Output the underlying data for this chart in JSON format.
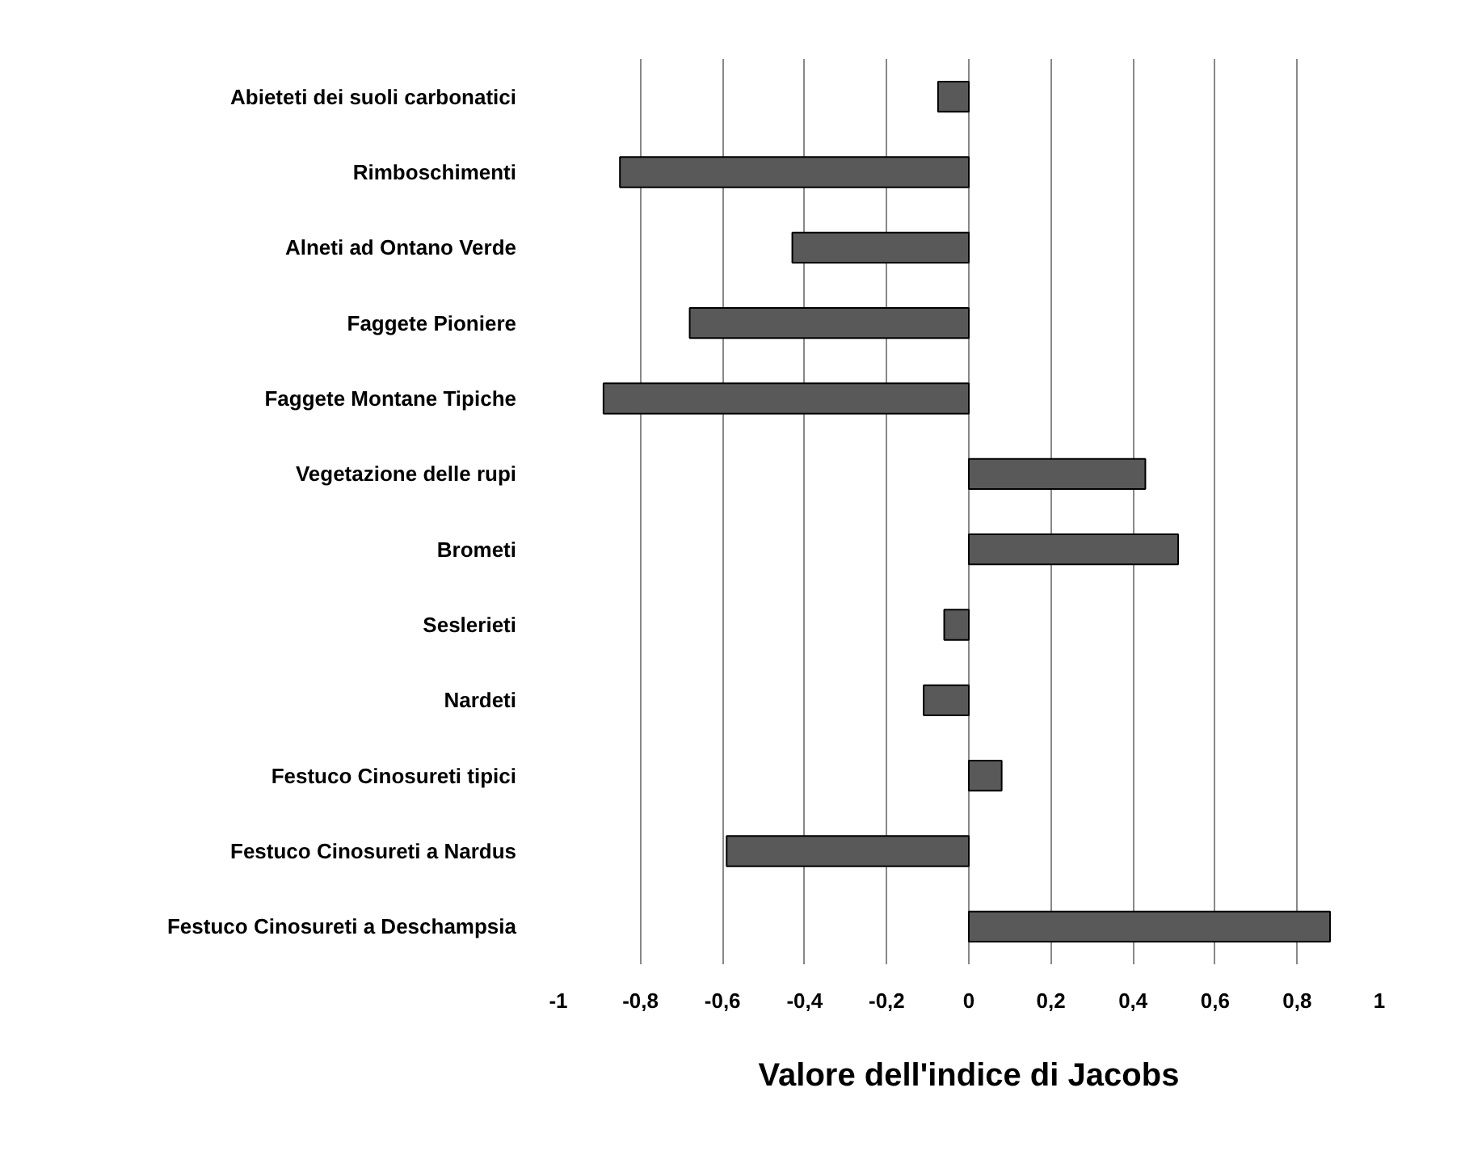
{
  "chart_data": {
    "type": "bar",
    "orientation": "horizontal",
    "xlabel": "Valore dell'indice di Jacobs",
    "categories": [
      "Abieteti dei suoli carbonatici",
      "Rimboschimenti",
      "Alneti ad Ontano Verde",
      "Faggete Pioniere",
      "Faggete Montane Tipiche",
      "Vegetazione delle rupi",
      "Brometi",
      "Seslerieti",
      "Nardeti",
      "Festuco Cinosureti tipici",
      "Festuco Cinosureti a Nardus",
      "Festuco Cinosureti a Deschampsia"
    ],
    "values": [
      -0.075,
      -0.85,
      -0.43,
      -0.68,
      -0.89,
      0.43,
      0.51,
      -0.06,
      -0.11,
      0.08,
      -0.59,
      0.88
    ],
    "color": "#595959",
    "xlim": [
      -1,
      1
    ],
    "xticks": [
      {
        "value": -1,
        "label": "-1"
      },
      {
        "value": -0.8,
        "label": "-0,8"
      },
      {
        "value": -0.6,
        "label": "-0,6"
      },
      {
        "value": -0.4,
        "label": "-0,4"
      },
      {
        "value": -0.2,
        "label": "-0,2"
      },
      {
        "value": 0,
        "label": "0"
      },
      {
        "value": 0.2,
        "label": "0,2"
      },
      {
        "value": 0.4,
        "label": "0,4"
      },
      {
        "value": 0.6,
        "label": "0,6"
      },
      {
        "value": 0.8,
        "label": "0,8"
      },
      {
        "value": 1,
        "label": "1"
      }
    ],
    "grid": "x"
  }
}
